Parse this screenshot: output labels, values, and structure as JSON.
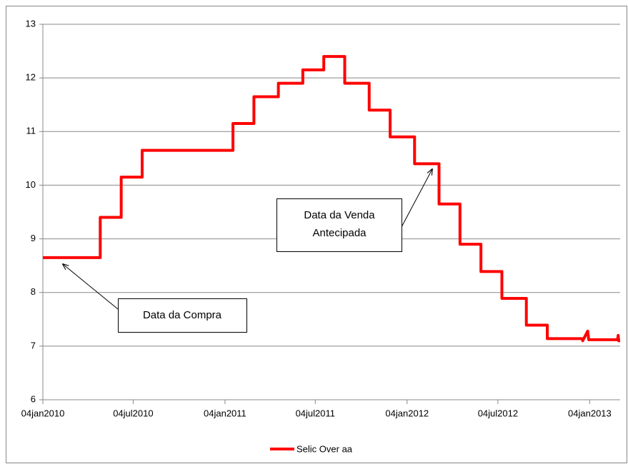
{
  "chart_data": {
    "type": "line",
    "x": [
      "2010-01-04",
      "2010-04-29",
      "2010-04-29",
      "2010-06-10",
      "2010-06-10",
      "2010-07-22",
      "2010-07-22",
      "2011-01-20",
      "2011-01-20",
      "2011-03-03",
      "2011-03-03",
      "2011-04-21",
      "2011-04-21",
      "2011-06-09",
      "2011-06-09",
      "2011-07-21",
      "2011-07-21",
      "2011-09-01",
      "2011-09-01",
      "2011-10-20",
      "2011-10-20",
      "2011-12-01",
      "2011-12-01",
      "2012-01-19",
      "2012-01-19",
      "2012-03-08",
      "2012-03-08",
      "2012-04-19",
      "2012-04-19",
      "2012-05-31",
      "2012-05-31",
      "2012-07-12",
      "2012-07-12",
      "2012-08-30",
      "2012-08-30",
      "2012-10-11",
      "2012-10-11",
      "2012-12-20",
      "2012-12-21",
      "2012-12-31",
      "2013-01-02",
      "2013-03-01",
      "2013-03-02",
      "2013-03-03",
      "2013-03-06"
    ],
    "series": [
      {
        "name": "Selic Over aa",
        "color": "#ff0000",
        "values": [
          8.65,
          8.65,
          9.4,
          9.4,
          10.15,
          10.15,
          10.65,
          10.65,
          11.15,
          11.15,
          11.65,
          11.65,
          11.9,
          11.9,
          12.15,
          12.15,
          12.4,
          12.4,
          11.9,
          11.9,
          11.4,
          11.4,
          10.9,
          10.9,
          10.4,
          10.4,
          9.65,
          9.65,
          8.9,
          8.9,
          8.39,
          8.39,
          7.89,
          7.89,
          7.39,
          7.39,
          7.14,
          7.14,
          7.1,
          7.28,
          7.12,
          7.12,
          7.2,
          7.1,
          7.1
        ]
      }
    ],
    "xlim": [
      "2010-01-04",
      "2013-03-06"
    ],
    "xticks": [
      {
        "value": "2010-01-04",
        "label": "04jan2010"
      },
      {
        "value": "2010-07-04",
        "label": "04jul2010"
      },
      {
        "value": "2011-01-04",
        "label": "04jan2011"
      },
      {
        "value": "2011-07-04",
        "label": "04jul2011"
      },
      {
        "value": "2012-01-04",
        "label": "04jan2012"
      },
      {
        "value": "2012-07-04",
        "label": "04jul2012"
      },
      {
        "value": "2013-01-04",
        "label": "04jan2013"
      }
    ],
    "ylim": [
      6,
      13
    ],
    "yticks": [
      6,
      7,
      8,
      9,
      10,
      11,
      12,
      13
    ],
    "grid": true,
    "legend": "bottom",
    "annotations": [
      {
        "lines": [
          "Data da Compra"
        ]
      },
      {
        "lines": [
          "Data da Venda",
          "Antecipada"
        ]
      }
    ]
  }
}
